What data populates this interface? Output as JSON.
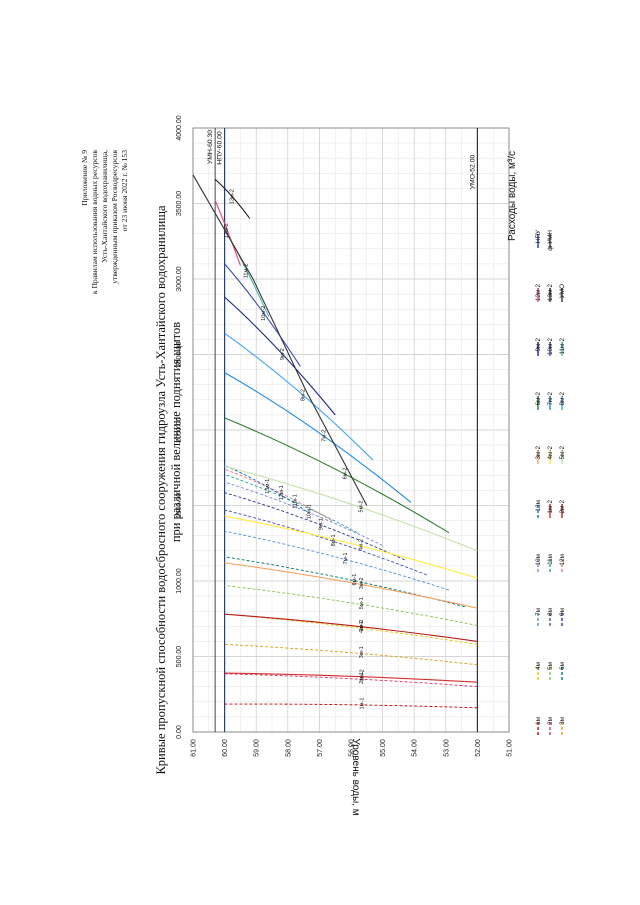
{
  "annex": {
    "lines": [
      "Приложение № 9",
      "к Правилам использования водных ресурсов",
      "Усть-Хантайского водохранилища,",
      "утвержденным приказом Росводресурсов",
      "от 23 июня 2022 г. № 153"
    ]
  },
  "chart_data": {
    "type": "line",
    "title": "Кривые пропускной способности водосбросного сооружения гидроузла Усть-Хантайского водохранилища",
    "subtitle": "при различной величине поднятия щитов",
    "xlabel": "Расходы воды, м³/с",
    "ylabel": "Уровень воды, м",
    "xlim": [
      0,
      4000
    ],
    "ylim": [
      51,
      61
    ],
    "x_ticks": [
      "0.00",
      "500.00",
      "1000.00",
      "1500.00",
      "2000.00",
      "2500.00",
      "3000.00",
      "3500.00",
      "4000.00"
    ],
    "y_ticks": [
      "51.00",
      "52.00",
      "53.00",
      "54.00",
      "55.00",
      "56.00",
      "57.00",
      "58.00",
      "59.00",
      "60.00",
      "61.00"
    ],
    "grid": true,
    "reference_lines": [
      {
        "name": "НПУ",
        "label": "НПУ-60.00",
        "level": 60.0,
        "color": "#1f3f8f"
      },
      {
        "name": "УМН",
        "label": "УМН-60.30",
        "level": 60.3,
        "color": "#333333"
      },
      {
        "name": "УМО",
        "label": "УМО-52.00",
        "level": 52.0,
        "color": "#333333"
      }
    ],
    "series": [
      {
        "name": "1м",
        "label": "1м-1",
        "color": "#c00000",
        "dash": "3,2",
        "Q": [
          160,
          185
        ],
        "H": [
          52.0,
          60.0
        ]
      },
      {
        "name": "2м",
        "label": "2м-1",
        "color": "#d6336c",
        "dash": "3,2",
        "Q": [
          300,
          385
        ],
        "H": [
          52.0,
          60.0
        ]
      },
      {
        "name": "3м",
        "label": "3м-1",
        "color": "#d4a017",
        "dash": "3,2",
        "Q": [
          445,
          580
        ],
        "H": [
          52.0,
          60.0
        ]
      },
      {
        "name": "4м",
        "label": "4м-1",
        "color": "#e0c800",
        "dash": "3,2",
        "Q": [
          580,
          780
        ],
        "H": [
          52.0,
          60.0
        ]
      },
      {
        "name": "5м",
        "label": "5м-1",
        "color": "#8bc34a",
        "dash": "3,2",
        "Q": [
          705,
          970
        ],
        "H": [
          52.0,
          60.0
        ]
      },
      {
        "name": "6м",
        "label": "6м-1",
        "color": "#00796b",
        "dash": "3,2",
        "Q": [
          830,
          1160
        ],
        "H": [
          52.4,
          60.0
        ]
      },
      {
        "name": "7м",
        "label": "7м-1",
        "color": "#4a90d9",
        "dash": "3,2",
        "Q": [
          940,
          1330
        ],
        "H": [
          52.9,
          60.0
        ]
      },
      {
        "name": "8м",
        "label": "8м-1",
        "color": "#3f51b5",
        "dash": "3,2",
        "Q": [
          1040,
          1470
        ],
        "H": [
          53.6,
          60.0
        ]
      },
      {
        "name": "9м",
        "label": "9м-1",
        "color": "#283593",
        "dash": "3,2",
        "Q": [
          1140,
          1585
        ],
        "H": [
          54.3,
          60.0
        ]
      },
      {
        "name": "10м",
        "label": "10м-1",
        "color": "#7986cb",
        "dash": "3,2",
        "Q": [
          1235,
          1655
        ],
        "H": [
          55.0,
          60.0
        ]
      },
      {
        "name": "11м",
        "label": "11м-1",
        "color": "#26a69a",
        "dash": "3,2",
        "Q": [
          1320,
          1705
        ],
        "H": [
          55.8,
          60.0
        ]
      },
      {
        "name": "12м",
        "label": "12м-1",
        "color": "#e57373",
        "dash": "3,2",
        "Q": [
          1400,
          1740
        ],
        "H": [
          56.6,
          60.0
        ]
      },
      {
        "name": "13м",
        "label": "13м-1",
        "color": "#1565c0",
        "dash": "3,2",
        "Q": [
          1460,
          1765
        ],
        "H": [
          57.4,
          60.0
        ]
      },
      {
        "name": "1м-2",
        "label": "1м-2",
        "color": "#d32f2f",
        "dash": "",
        "Q": [
          330,
          390
        ],
        "H": [
          52.0,
          60.0
        ]
      },
      {
        "name": "2м-2",
        "label": "2м-2",
        "color": "#b71c1c",
        "dash": "",
        "Q": [
          600,
          780
        ],
        "H": [
          52.0,
          60.0
        ]
      },
      {
        "name": "3м-2",
        "label": "3м-2",
        "color": "#f4a261",
        "dash": "",
        "Q": [
          820,
          1120
        ],
        "H": [
          52.0,
          60.0
        ]
      },
      {
        "name": "4м-2",
        "label": "4м-2",
        "color": "#ffeb3b",
        "dash": "",
        "Q": [
          1020,
          1430
        ],
        "H": [
          52.0,
          60.0
        ]
      },
      {
        "name": "5м-2",
        "label": "5м-2",
        "color": "#c5e1a5",
        "dash": "",
        "Q": [
          1200,
          1760
        ],
        "H": [
          52.0,
          60.0
        ]
      },
      {
        "name": "6м-2",
        "label": "6м-2",
        "color": "#2e7d32",
        "dash": "",
        "Q": [
          1320,
          2080
        ],
        "H": [
          52.9,
          60.0
        ]
      },
      {
        "name": "7м-2",
        "label": "7м-2",
        "color": "#1e88e5",
        "dash": "",
        "Q": [
          1520,
          2380
        ],
        "H": [
          54.1,
          60.0
        ]
      },
      {
        "name": "8м-2",
        "label": "8м-2",
        "color": "#42a5f5",
        "dash": "",
        "Q": [
          1800,
          2640
        ],
        "H": [
          55.3,
          60.0
        ]
      },
      {
        "name": "9м-2",
        "label": "9м-2",
        "color": "#1a237e",
        "dash": "",
        "Q": [
          2100,
          2880
        ],
        "H": [
          56.5,
          60.0
        ]
      },
      {
        "name": "10м-2",
        "label": "10м-2",
        "color": "#3949ab",
        "dash": "",
        "Q": [
          2420,
          3100
        ],
        "H": [
          57.6,
          60.0
        ]
      },
      {
        "name": "11м-2",
        "label": "11м-2",
        "color": "#4db6ac",
        "dash": "",
        "Q": [
          2750,
          3330
        ],
        "H": [
          58.6,
          60.0
        ]
      },
      {
        "name": "12м-2",
        "label": "12м-2",
        "color": "#ec407a",
        "dash": "",
        "Q": [
          3090,
          3520
        ],
        "H": [
          59.5,
          60.3
        ]
      },
      {
        "name": "13м-2",
        "label": "13м-2",
        "color": "#212121",
        "dash": "",
        "Q": [
          3400,
          3660
        ],
        "H": [
          59.2,
          60.3
        ]
      }
    ],
    "envelope": {
      "name": "ф УМН",
      "Q": [
        1500,
        2250,
        3000,
        3690
      ],
      "H": [
        55.5,
        57.4,
        59.1,
        61.0
      ]
    },
    "legend": [
      {
        "label": "1м",
        "color": "#c00000",
        "dash": "3,2"
      },
      {
        "label": "2м",
        "color": "#d6336c",
        "dash": "3,2"
      },
      {
        "label": "3м",
        "color": "#d4a017",
        "dash": "3,2"
      },
      {
        "label": "4м",
        "color": "#e0c800",
        "dash": "3,2"
      },
      {
        "label": "5м",
        "color": "#8bc34a",
        "dash": "3,2"
      },
      {
        "label": "6м",
        "color": "#00796b",
        "dash": "3,2"
      },
      {
        "label": "7м",
        "color": "#4a90d9",
        "dash": "3,2"
      },
      {
        "label": "8м",
        "color": "#3f51b5",
        "dash": "3,2"
      },
      {
        "label": "9м",
        "color": "#283593",
        "dash": "3,2"
      },
      {
        "label": "10м",
        "color": "#7986cb",
        "dash": "3,2"
      },
      {
        "label": "11м",
        "color": "#26a69a",
        "dash": "3,2"
      },
      {
        "label": "12м",
        "color": "#e57373",
        "dash": "3,2"
      },
      {
        "label": "13м",
        "color": "#1565c0",
        "dash": "3,2"
      },
      {
        "label": "1м-2",
        "color": "#d32f2f",
        "dash": ""
      },
      {
        "label": "2м-2",
        "color": "#b71c1c",
        "dash": ""
      },
      {
        "label": "3м-2",
        "color": "#f4a261",
        "dash": ""
      },
      {
        "label": "4м-2",
        "color": "#ffeb3b",
        "dash": ""
      },
      {
        "label": "5м-2",
        "color": "#c5e1a5",
        "dash": ""
      },
      {
        "label": "6м-2",
        "color": "#2e7d32",
        "dash": ""
      },
      {
        "label": "7м-2",
        "color": "#1e88e5",
        "dash": ""
      },
      {
        "label": "8м-2",
        "color": "#42a5f5",
        "dash": ""
      },
      {
        "label": "9м-2",
        "color": "#1a237e",
        "dash": ""
      },
      {
        "label": "10м-2",
        "color": "#3949ab",
        "dash": ""
      },
      {
        "label": "11м-2",
        "color": "#4db6ac",
        "dash": ""
      },
      {
        "label": "12м-2",
        "color": "#ec407a",
        "dash": ""
      },
      {
        "label": "13м-2",
        "color": "#212121",
        "dash": ""
      },
      {
        "label": "УМО",
        "color": "#333333",
        "dash": ""
      },
      {
        "label": "НПУ",
        "color": "#1f3f8f",
        "dash": ""
      },
      {
        "label": "ф УМН",
        "color": "#333333",
        "dash": ""
      }
    ]
  }
}
